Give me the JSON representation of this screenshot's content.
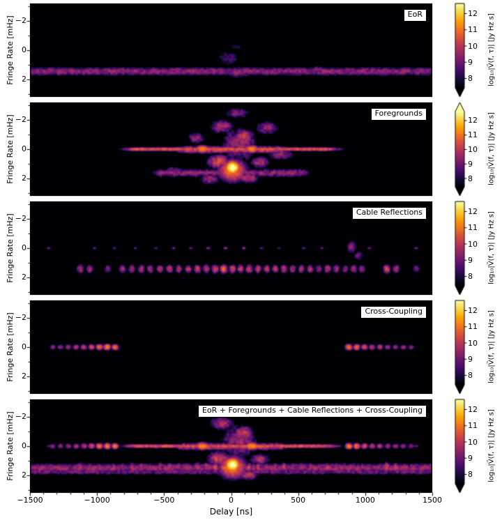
{
  "chart_data": {
    "type": "heatmap",
    "x": {
      "label": "Delay [ns]",
      "range": [
        -1500,
        1500
      ],
      "ticks": [
        -1500,
        -1000,
        -500,
        0,
        500,
        1000,
        1500
      ],
      "tick_labels": [
        "−1500",
        "−1000",
        "−500",
        "0",
        "500",
        "1000",
        "1500"
      ],
      "minor_step": 100
    },
    "y": {
      "label": "Fringe Rate [mHz]",
      "range": [
        -3.2,
        3.2
      ],
      "ticks": [
        -2,
        0,
        2
      ],
      "tick_labels": [
        "−2",
        "0",
        "2"
      ],
      "minor_ticks": [
        -3,
        -1,
        1,
        3
      ]
    },
    "colorbar": {
      "label": "log₁₀|Ṽ(f, τ)| [Jy Hz s]",
      "ticks": [
        8,
        9,
        10,
        11,
        12
      ],
      "tick_labels": [
        "8",
        "9",
        "10",
        "11",
        "12"
      ],
      "vmin": 7.4,
      "vmax": 12.6,
      "colormap": "inferno",
      "colors": [
        "#000004",
        "#160b39",
        "#420a68",
        "#6a176e",
        "#932667",
        "#bc3754",
        "#dd513a",
        "#f37819",
        "#fca50a",
        "#f6d746",
        "#fcffa4"
      ]
    },
    "feature_format": "blob:[type,delay,fringe,sx_ns,sy_mHz,amp_log10,speckle]; hband:[type,delay0,delay1,fringe,sy_mHz,amp_log10,speckle,edge_ns]; dots:[type,fringe,sy_mHz,sx_ns,delays[],amps_log10[],speckle]",
    "panels": [
      {
        "id": "eor",
        "label": "EoR",
        "extend": "min",
        "features": [
          [
            "hband",
            -1500,
            1500,
            1.45,
            0.4,
            9.3,
            0.55,
            60
          ],
          [
            "blob",
            -1280,
            1.45,
            110,
            0.42,
            9.5,
            0.5
          ],
          [
            "blob",
            50,
            1.5,
            150,
            0.48,
            9.55,
            0.5
          ],
          [
            "blob",
            640,
            1.4,
            90,
            0.4,
            9.35,
            0.5
          ],
          [
            "blob",
            1130,
            1.5,
            100,
            0.42,
            9.45,
            0.5
          ],
          [
            "blob",
            -20,
            0.55,
            130,
            0.8,
            8.45,
            0.5
          ],
          [
            "blob",
            40,
            -0.2,
            70,
            0.35,
            8.1,
            0.45
          ]
        ]
      },
      {
        "id": "foregrounds",
        "label": "Foregrounds",
        "extend": "both",
        "features": [
          [
            "blob",
            10,
            1.27,
            60,
            0.5,
            12.8,
            0.15
          ],
          [
            "blob",
            10,
            1.45,
            130,
            0.95,
            11.0,
            0.3
          ],
          [
            "blob",
            -215,
            0.0,
            65,
            0.32,
            11.3,
            0.25
          ],
          [
            "blob",
            155,
            0.0,
            65,
            0.32,
            11.35,
            0.25
          ],
          [
            "hband",
            -690,
            690,
            0.0,
            0.18,
            10.4,
            0.5,
            170
          ],
          [
            "hband",
            -330,
            330,
            0.03,
            0.32,
            10.1,
            0.55,
            120
          ],
          [
            "blob",
            -95,
            0.85,
            105,
            0.62,
            10.2,
            0.55
          ],
          [
            "blob",
            95,
            -0.9,
            95,
            0.6,
            10.0,
            0.55
          ],
          [
            "blob",
            -70,
            -1.55,
            115,
            0.6,
            9.65,
            0.55
          ],
          [
            "blob",
            130,
            1.95,
            100,
            0.5,
            9.85,
            0.5
          ],
          [
            "blob",
            -160,
            2.05,
            95,
            0.5,
            9.5,
            0.5
          ],
          [
            "blob",
            45,
            -2.45,
            130,
            0.5,
            9.15,
            0.5
          ],
          [
            "blob",
            215,
            0.9,
            95,
            0.5,
            9.75,
            0.5
          ],
          [
            "blob",
            -260,
            -0.75,
            85,
            0.5,
            9.45,
            0.55
          ],
          [
            "blob",
            270,
            -1.45,
            115,
            0.6,
            9.35,
            0.55
          ],
          [
            "hband",
            -520,
            520,
            1.62,
            0.4,
            9.25,
            0.6,
            100
          ],
          [
            "blob",
            370,
            0.35,
            140,
            0.5,
            9.35,
            0.5
          ],
          [
            "blob",
            -420,
            1.5,
            120,
            0.42,
            9.25,
            0.5
          ],
          [
            "blob",
            60,
            -0.3,
            180,
            1.5,
            9.5,
            0.6
          ]
        ]
      },
      {
        "id": "cable-reflections",
        "label": "Cable Reflections",
        "extend": "min",
        "features": [
          [
            "dots",
            1.42,
            0.4,
            36,
            [
              -1125,
              -1055,
              -920,
              -810,
              -740,
              -670,
              -605,
              -530,
              -460,
              -390,
              -320,
              -250,
              -185,
              -120,
              -55,
              10,
              70,
              135,
              200,
              265,
              330,
              395,
              460,
              525,
              590,
              655,
              720,
              785,
              850,
              915,
              975,
              1160,
              1230,
              1380
            ],
            [
              9.9,
              9.8,
              9.3,
              9.7,
              9.9,
              9.8,
              9.6,
              9.8,
              10.0,
              9.8,
              9.9,
              10.2,
              10.0,
              10.4,
              10.8,
              10.3,
              10.0,
              10.1,
              9.9,
              9.8,
              9.7,
              9.9,
              9.6,
              9.7,
              9.8,
              9.6,
              9.9,
              9.7,
              9.5,
              9.6,
              9.5,
              10.4,
              9.9,
              9.2
            ],
            0.5
          ],
          [
            "dots",
            0.0,
            0.17,
            27,
            [
              -1360,
              -1020,
              -870,
              -715,
              -560,
              -430,
              -300,
              -170,
              -40,
              95,
              225,
              355,
              538,
              678,
              886,
              1032,
              1380
            ],
            [
              9.0,
              8.8,
              8.9,
              8.8,
              8.9,
              8.9,
              9.0,
              9.2,
              9.5,
              9.2,
              9.0,
              8.9,
              8.9,
              8.8,
              9.4,
              9.0,
              9.1
            ],
            0.4
          ],
          [
            "blob",
            900,
            -0.1,
            55,
            0.6,
            9.3,
            0.5
          ],
          [
            "blob",
            950,
            0.5,
            45,
            0.45,
            9.15,
            0.5
          ]
        ]
      },
      {
        "id": "cross-coupling",
        "label": "Cross-Coupling",
        "extend": "min",
        "features": [
          [
            "dots",
            0.0,
            0.27,
            36,
            [
              -1330,
              -1272,
              -1214,
              -1156,
              -1098,
              -1040,
              -982,
              -924,
              -866
            ],
            [
              9.35,
              9.5,
              9.6,
              9.8,
              10.0,
              10.3,
              10.8,
              11.15,
              10.9
            ],
            0.35
          ],
          [
            "dots",
            0.0,
            0.27,
            36,
            [
              878,
              936,
              994,
              1052,
              1110,
              1168,
              1226,
              1284,
              1342
            ],
            [
              11.15,
              10.85,
              10.4,
              10.0,
              9.8,
              9.65,
              9.55,
              9.45,
              9.3
            ],
            0.35
          ]
        ]
      },
      {
        "id": "sum",
        "label": "EoR + Foregrounds + Cable Reflections + Cross-Coupling",
        "extend": "min",
        "features": [
          [
            "hband",
            -1500,
            1500,
            1.5,
            0.45,
            9.4,
            0.6,
            60
          ],
          [
            "hband",
            -1500,
            1500,
            1.75,
            0.3,
            8.9,
            0.6,
            60
          ],
          [
            "dots",
            1.45,
            0.42,
            36,
            [
              -1125,
              -1055,
              -920,
              -810,
              -740,
              -670,
              -605,
              -530,
              -460,
              -390,
              -320,
              -250,
              -185,
              -120,
              -55,
              10,
              70,
              135,
              200,
              265,
              330,
              395,
              460,
              525,
              590,
              655,
              720,
              785,
              850,
              915,
              975,
              1160,
              1230,
              1380
            ],
            [
              9.9,
              9.8,
              9.3,
              9.7,
              9.9,
              9.8,
              9.6,
              9.8,
              10.0,
              9.8,
              9.9,
              10.2,
              10.0,
              10.4,
              10.8,
              10.3,
              10.0,
              10.1,
              9.9,
              9.8,
              9.7,
              9.9,
              9.6,
              9.7,
              9.8,
              9.6,
              9.9,
              9.7,
              9.5,
              9.6,
              9.5,
              10.4,
              9.9,
              9.2
            ],
            0.5
          ],
          [
            "dots",
            0.0,
            0.17,
            27,
            [
              -1360,
              -1020,
              -870,
              -715,
              -560,
              -430,
              -300,
              -170,
              -40,
              95,
              225,
              355,
              538,
              678,
              886,
              1032,
              1380
            ],
            [
              9.0,
              8.8,
              8.9,
              8.8,
              8.9,
              8.9,
              9.0,
              9.2,
              9.5,
              9.2,
              9.0,
              8.9,
              8.9,
              8.8,
              9.4,
              9.0,
              9.1
            ],
            0.4
          ],
          [
            "dots",
            0.0,
            0.27,
            36,
            [
              -1330,
              -1272,
              -1214,
              -1156,
              -1098,
              -1040,
              -982,
              -924,
              -866
            ],
            [
              9.35,
              9.5,
              9.6,
              9.8,
              10.0,
              10.3,
              10.8,
              11.15,
              10.9
            ],
            0.35
          ],
          [
            "dots",
            0.0,
            0.27,
            36,
            [
              878,
              936,
              994,
              1052,
              1110,
              1168,
              1226,
              1284,
              1342
            ],
            [
              11.15,
              10.85,
              10.4,
              10.0,
              9.8,
              9.65,
              9.55,
              9.45,
              9.3
            ],
            0.35
          ],
          [
            "blob",
            10,
            1.27,
            60,
            0.5,
            12.8,
            0.15
          ],
          [
            "blob",
            10,
            1.45,
            130,
            0.95,
            11.0,
            0.3
          ],
          [
            "blob",
            -215,
            0.0,
            65,
            0.32,
            11.3,
            0.25
          ],
          [
            "blob",
            155,
            0.0,
            65,
            0.32,
            11.35,
            0.25
          ],
          [
            "hband",
            -690,
            690,
            0.0,
            0.18,
            10.4,
            0.5,
            170
          ],
          [
            "hband",
            -330,
            330,
            0.03,
            0.32,
            10.1,
            0.55,
            120
          ],
          [
            "blob",
            -95,
            0.85,
            105,
            0.62,
            10.2,
            0.55
          ],
          [
            "blob",
            95,
            -0.9,
            95,
            0.6,
            10.0,
            0.55
          ],
          [
            "blob",
            -70,
            -1.55,
            115,
            0.6,
            9.65,
            0.55
          ],
          [
            "blob",
            130,
            1.95,
            100,
            0.5,
            9.85,
            0.5
          ],
          [
            "blob",
            45,
            -2.45,
            130,
            0.5,
            9.15,
            0.5
          ],
          [
            "blob",
            215,
            0.9,
            95,
            0.5,
            9.75,
            0.5
          ],
          [
            "blob",
            60,
            -0.3,
            180,
            1.5,
            9.5,
            0.6
          ]
        ]
      }
    ]
  }
}
